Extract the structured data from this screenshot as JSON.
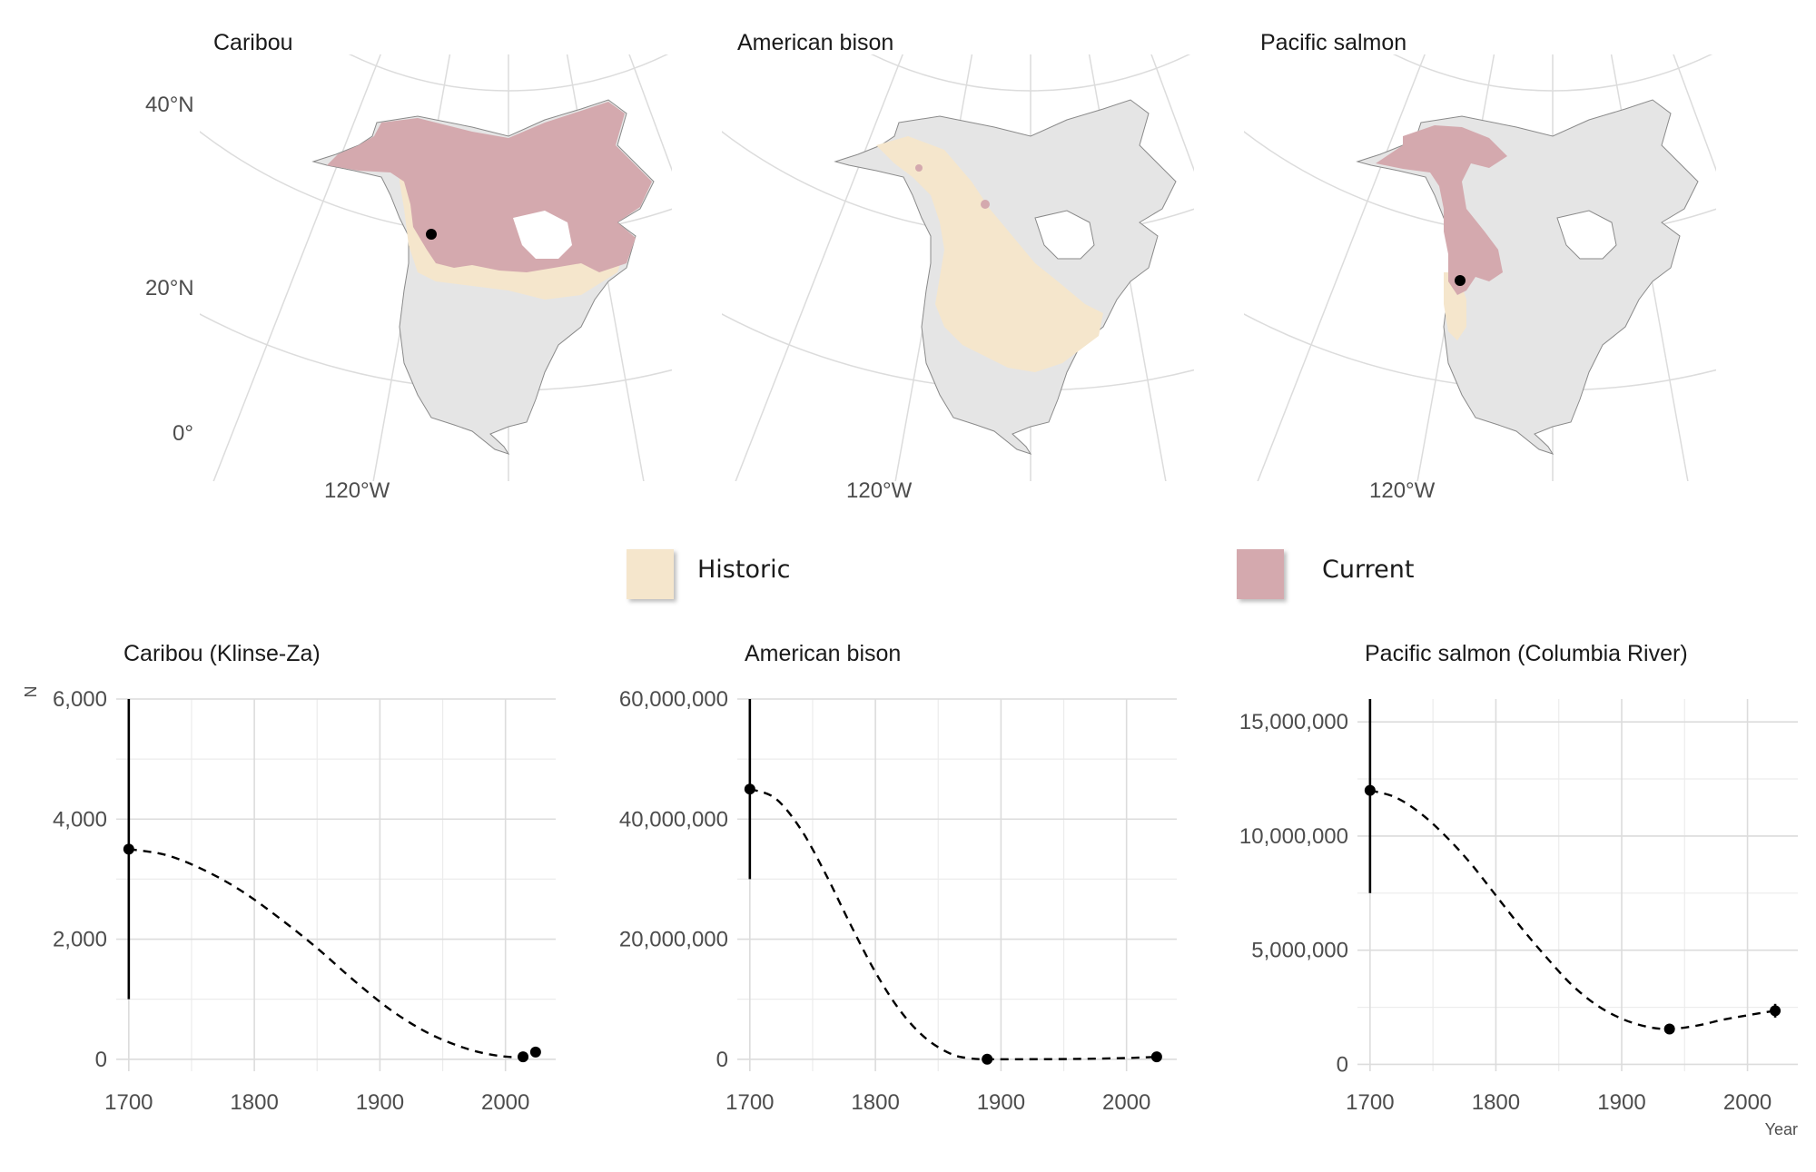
{
  "maps": [
    {
      "title": "Caribou",
      "lat_labels": [
        "40°N",
        "20°N",
        "0°"
      ],
      "lon_label": "120°W",
      "ranges": [
        "historic",
        "current"
      ]
    },
    {
      "title": "American bison",
      "lon_label": "120°W",
      "ranges": [
        "historic",
        "current"
      ]
    },
    {
      "title": "Pacific salmon",
      "lon_label": "120°W",
      "ranges": [
        "historic",
        "current"
      ]
    }
  ],
  "legend": {
    "items": [
      {
        "label": "Historic",
        "color": "#f5e6cc"
      },
      {
        "label": "Current",
        "color": "#d4a9ae"
      }
    ]
  },
  "colors": {
    "land": "#e5e5e5",
    "historic": "#f5e6cc",
    "current": "#d4a9ae",
    "grid": "#dddddd"
  },
  "chart_data": [
    {
      "type": "line",
      "title": "Caribou (Klinse-Za)",
      "ylabel": "N",
      "xlabel": "",
      "xlim": [
        1690,
        2040
      ],
      "ylim": [
        -200,
        6000
      ],
      "xticks": [
        1700,
        1800,
        1900,
        2000
      ],
      "xtick_labels": [
        "1700",
        "1800",
        "1900",
        "2000"
      ],
      "yticks": [
        0,
        2000,
        4000,
        6000
      ],
      "ytick_labels": [
        "0",
        "2,000",
        "4,000",
        "6,000"
      ],
      "points": [
        {
          "x": 1700,
          "y": 3500,
          "ymin": 1000,
          "ymax": 6000
        },
        {
          "x": 2014,
          "y": 40
        },
        {
          "x": 2024,
          "y": 120
        }
      ],
      "trend": [
        [
          1700,
          3500
        ],
        [
          1730,
          3400
        ],
        [
          1760,
          3150
        ],
        [
          1790,
          2800
        ],
        [
          1820,
          2350
        ],
        [
          1850,
          1850
        ],
        [
          1880,
          1300
        ],
        [
          1910,
          800
        ],
        [
          1940,
          420
        ],
        [
          1970,
          170
        ],
        [
          1995,
          55
        ],
        [
          2014,
          40
        ],
        [
          2024,
          120
        ]
      ],
      "grid": true
    },
    {
      "type": "line",
      "title": "American bison",
      "ylabel": "",
      "xlabel": "",
      "xlim": [
        1690,
        2040
      ],
      "ylim": [
        -2000000,
        60000000
      ],
      "xticks": [
        1700,
        1800,
        1900,
        2000
      ],
      "xtick_labels": [
        "1700",
        "1800",
        "1900",
        "2000"
      ],
      "yticks": [
        0,
        20000000,
        40000000,
        60000000
      ],
      "ytick_labels": [
        "0",
        "20,000,000",
        "40,000,000",
        "60,000,000"
      ],
      "points": [
        {
          "x": 1700,
          "y": 45000000,
          "ymin": 30000000,
          "ymax": 60000000
        },
        {
          "x": 1889,
          "y": 1000
        },
        {
          "x": 2024,
          "y": 400000
        }
      ],
      "trend": [
        [
          1700,
          45000000
        ],
        [
          1720,
          43500000
        ],
        [
          1740,
          38500000
        ],
        [
          1760,
          31000000
        ],
        [
          1780,
          22500000
        ],
        [
          1800,
          14500000
        ],
        [
          1820,
          8000000
        ],
        [
          1840,
          3500000
        ],
        [
          1860,
          900000
        ],
        [
          1875,
          150000
        ],
        [
          1889,
          1000
        ],
        [
          1920,
          0
        ],
        [
          1960,
          50000
        ],
        [
          2000,
          200000
        ],
        [
          2024,
          400000
        ]
      ],
      "grid": true
    },
    {
      "type": "line",
      "title": "Pacific salmon (Columbia River)",
      "ylabel": "",
      "xlabel": "Year",
      "xlim": [
        1690,
        2040
      ],
      "ylim": [
        -300000,
        16000000
      ],
      "xticks": [
        1700,
        1800,
        1900,
        2000
      ],
      "xtick_labels": [
        "1700",
        "1800",
        "1900",
        "2000"
      ],
      "yticks": [
        0,
        5000000,
        10000000,
        15000000
      ],
      "ytick_labels": [
        "0",
        "5,000,000",
        "10,000,000",
        "15,000,000"
      ],
      "points": [
        {
          "x": 1700,
          "y": 12000000,
          "ymin": 7500000,
          "ymax": 16000000
        },
        {
          "x": 1938,
          "y": 1550000
        },
        {
          "x": 2022,
          "y": 2350000,
          "ymin": 2050000,
          "ymax": 2650000
        }
      ],
      "trend": [
        [
          1700,
          12000000
        ],
        [
          1720,
          11700000
        ],
        [
          1740,
          11000000
        ],
        [
          1760,
          10000000
        ],
        [
          1780,
          8800000
        ],
        [
          1800,
          7400000
        ],
        [
          1820,
          6000000
        ],
        [
          1840,
          4700000
        ],
        [
          1860,
          3500000
        ],
        [
          1880,
          2600000
        ],
        [
          1900,
          2000000
        ],
        [
          1920,
          1650000
        ],
        [
          1938,
          1550000
        ],
        [
          1960,
          1700000
        ],
        [
          1980,
          1950000
        ],
        [
          2000,
          2150000
        ],
        [
          2022,
          2350000
        ]
      ],
      "grid": true
    }
  ]
}
